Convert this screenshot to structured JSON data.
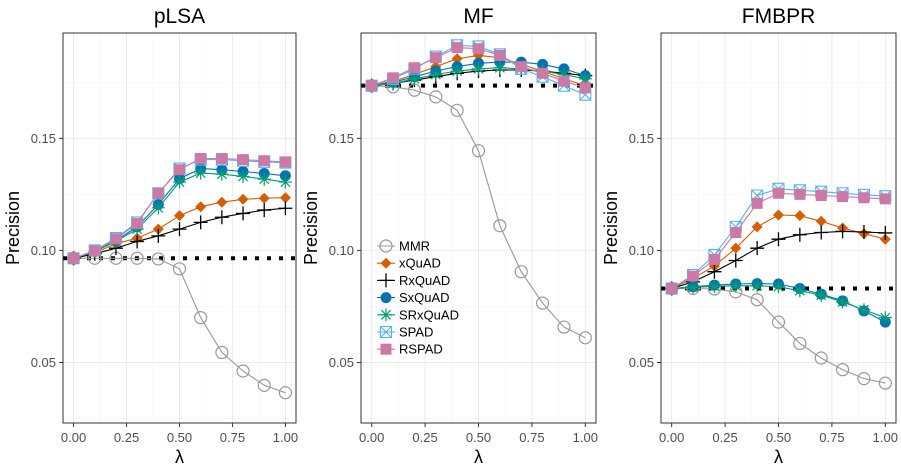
{
  "chart_data": [
    {
      "type": "line",
      "title": "pLSA",
      "xlabel": "λ",
      "ylabel": "Precision",
      "xlim": [
        -0.05,
        1.05
      ],
      "ylim": [
        0.023,
        0.197
      ],
      "x_ticks": [
        "0.00",
        "0.25",
        "0.50",
        "0.75",
        "1.00"
      ],
      "y_ticks": [
        "0.05",
        "0.10",
        "0.15"
      ],
      "baseline": 0.0965,
      "x": [
        0.0,
        0.1,
        0.2,
        0.3,
        0.4,
        0.5,
        0.6,
        0.7,
        0.8,
        0.9,
        1.0
      ],
      "series": [
        {
          "name": "MMR",
          "values": [
            0.0965,
            0.0965,
            0.0965,
            0.0965,
            0.0962,
            0.0918,
            0.07,
            0.0545,
            0.0462,
            0.0398,
            0.0365
          ]
        },
        {
          "name": "xQuAD",
          "values": [
            0.0965,
            0.099,
            0.103,
            0.1055,
            0.1095,
            0.1155,
            0.1195,
            0.1215,
            0.1228,
            0.1233,
            0.1235
          ]
        },
        {
          "name": "RxQuAD",
          "values": [
            0.0965,
            0.0985,
            0.101,
            0.104,
            0.1065,
            0.1095,
            0.1125,
            0.1148,
            0.1165,
            0.118,
            0.1188
          ]
        },
        {
          "name": "SxQuAD",
          "values": [
            0.0965,
            0.0995,
            0.1045,
            0.1105,
            0.1205,
            0.132,
            0.1365,
            0.136,
            0.1352,
            0.1343,
            0.1333
          ]
        },
        {
          "name": "SRxQuAD",
          "values": [
            0.0965,
            0.0995,
            0.104,
            0.1095,
            0.119,
            0.1305,
            0.1345,
            0.134,
            0.133,
            0.1318,
            0.1305
          ]
        },
        {
          "name": "SPAD",
          "values": [
            0.0965,
            0.1,
            0.1055,
            0.1125,
            0.1255,
            0.1365,
            0.1405,
            0.1405,
            0.14,
            0.1395,
            0.1392
          ]
        },
        {
          "name": "RSPAD",
          "values": [
            0.0965,
            0.0998,
            0.1052,
            0.112,
            0.1255,
            0.136,
            0.141,
            0.141,
            0.1405,
            0.14,
            0.1395
          ]
        }
      ]
    },
    {
      "type": "line",
      "title": "MF",
      "xlabel": "λ",
      "ylabel": "Precision",
      "xlim": [
        -0.05,
        1.05
      ],
      "ylim": [
        0.023,
        0.197
      ],
      "x_ticks": [
        "0.00",
        "0.25",
        "0.50",
        "0.75",
        "1.00"
      ],
      "y_ticks": [
        "0.05",
        "0.10",
        "0.15"
      ],
      "baseline": 0.1735,
      "legend": "left",
      "x": [
        0.0,
        0.1,
        0.2,
        0.3,
        0.4,
        0.5,
        0.6,
        0.7,
        0.8,
        0.9,
        1.0
      ],
      "series": [
        {
          "name": "MMR",
          "values": [
            0.1735,
            0.173,
            0.1715,
            0.1685,
            0.1625,
            0.1445,
            0.111,
            0.0905,
            0.0765,
            0.0658,
            0.061
          ]
        },
        {
          "name": "xQuAD",
          "values": [
            0.1735,
            0.1755,
            0.1785,
            0.182,
            0.1855,
            0.187,
            0.186,
            0.183,
            0.18,
            0.1765,
            0.1735
          ]
        },
        {
          "name": "RxQuAD",
          "values": [
            0.1735,
            0.1745,
            0.176,
            0.1775,
            0.179,
            0.18,
            0.1805,
            0.1805,
            0.18,
            0.179,
            0.178
          ]
        },
        {
          "name": "SxQuAD",
          "values": [
            0.1735,
            0.175,
            0.1775,
            0.18,
            0.182,
            0.1835,
            0.184,
            0.184,
            0.183,
            0.181,
            0.178
          ]
        },
        {
          "name": "SRxQuAD",
          "values": [
            0.1735,
            0.1745,
            0.1765,
            0.1785,
            0.18,
            0.181,
            0.1815,
            0.181,
            0.18,
            0.1785,
            0.1765
          ]
        },
        {
          "name": "SPAD",
          "values": [
            0.1735,
            0.1765,
            0.181,
            0.1865,
            0.1915,
            0.191,
            0.1875,
            0.181,
            0.1775,
            0.1735,
            0.1695
          ]
        },
        {
          "name": "RSPAD",
          "values": [
            0.1735,
            0.177,
            0.1815,
            0.186,
            0.1905,
            0.19,
            0.187,
            0.182,
            0.179,
            0.1755,
            0.1725
          ]
        }
      ]
    },
    {
      "type": "line",
      "title": "FMBPR",
      "xlabel": "λ",
      "ylabel": "Precision",
      "xlim": [
        -0.05,
        1.05
      ],
      "ylim": [
        0.023,
        0.197
      ],
      "x_ticks": [
        "0.00",
        "0.25",
        "0.50",
        "0.75",
        "1.00"
      ],
      "y_ticks": [
        "0.05",
        "0.10",
        "0.15"
      ],
      "baseline": 0.083,
      "x": [
        0.0,
        0.1,
        0.2,
        0.3,
        0.4,
        0.5,
        0.6,
        0.7,
        0.8,
        0.9,
        1.0
      ],
      "series": [
        {
          "name": "MMR",
          "values": [
            0.083,
            0.083,
            0.0828,
            0.0815,
            0.078,
            0.068,
            0.0585,
            0.052,
            0.0468,
            0.0428,
            0.0408
          ]
        },
        {
          "name": "xQuAD",
          "values": [
            0.083,
            0.0875,
            0.093,
            0.101,
            0.1105,
            0.1158,
            0.1155,
            0.113,
            0.11,
            0.1075,
            0.105
          ]
        },
        {
          "name": "RxQuAD",
          "values": [
            0.083,
            0.086,
            0.0905,
            0.0955,
            0.101,
            0.105,
            0.107,
            0.108,
            0.1085,
            0.1082,
            0.1078
          ]
        },
        {
          "name": "SxQuAD",
          "values": [
            0.083,
            0.0838,
            0.0845,
            0.085,
            0.0852,
            0.085,
            0.083,
            0.0805,
            0.0775,
            0.073,
            0.068
          ]
        },
        {
          "name": "SRxQuAD",
          "values": [
            0.083,
            0.0835,
            0.084,
            0.0842,
            0.0842,
            0.0838,
            0.082,
            0.08,
            0.077,
            0.0735,
            0.07
          ]
        },
        {
          "name": "SPAD",
          "values": [
            0.083,
            0.089,
            0.098,
            0.1105,
            0.1245,
            0.1275,
            0.1268,
            0.1262,
            0.1255,
            0.1248,
            0.1242
          ]
        },
        {
          "name": "RSPAD",
          "values": [
            0.083,
            0.0885,
            0.096,
            0.108,
            0.121,
            0.1255,
            0.125,
            0.1245,
            0.124,
            0.1235,
            0.123
          ]
        }
      ]
    }
  ],
  "series_styles": [
    {
      "name": "MMR",
      "color": "#999999",
      "marker": "open-circle"
    },
    {
      "name": "xQuAD",
      "color": "#d55e00",
      "marker": "diamond"
    },
    {
      "name": "RxQuAD",
      "color": "#000000",
      "marker": "plus"
    },
    {
      "name": "SxQuAD",
      "color": "#0072b2",
      "marker": "filled-circle"
    },
    {
      "name": "SRxQuAD",
      "color": "#009e73",
      "marker": "asterisk"
    },
    {
      "name": "SPAD",
      "color": "#56b4e9",
      "marker": "boxed-x"
    },
    {
      "name": "RSPAD",
      "color": "#cc79a7",
      "marker": "filled-square"
    }
  ],
  "baseline_color": "#000000"
}
